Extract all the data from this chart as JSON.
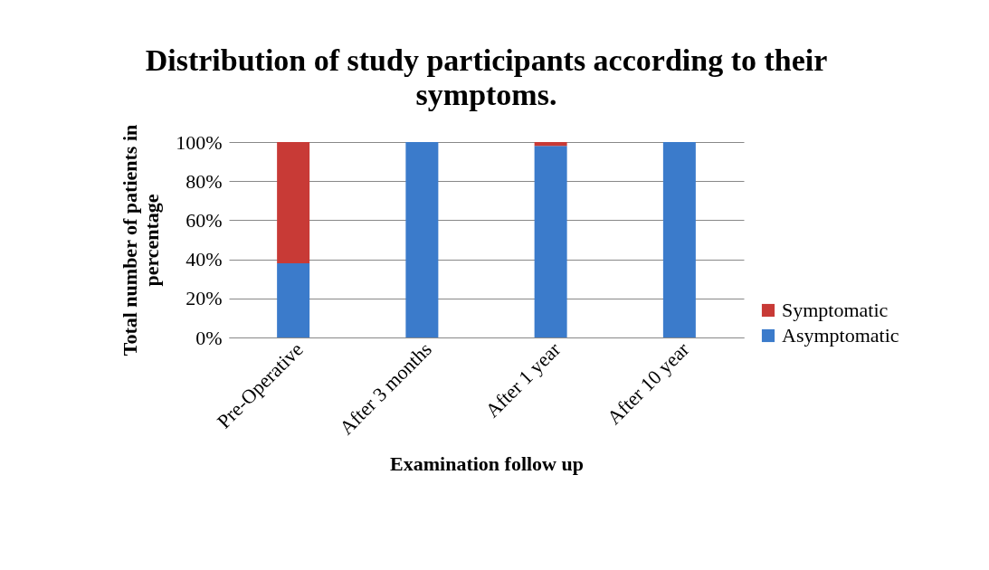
{
  "chart_data": {
    "type": "bar",
    "title": "Distribution of study participants according to their symptoms.",
    "xlabel": "Examination follow up",
    "ylabel": "Total number of patients in percentage",
    "categories": [
      "Pre-Operative",
      "After 3 months",
      "After 1 year",
      "After 10 year"
    ],
    "stacked": true,
    "series": [
      {
        "name": "Asymptomatic",
        "color": "#3b7bcb",
        "values": [
          38,
          100,
          98,
          100
        ]
      },
      {
        "name": "Symptomatic",
        "color": "#c83a36",
        "values": [
          62,
          0,
          2,
          0
        ]
      }
    ],
    "ylim": [
      0,
      100
    ],
    "yticks": [
      {
        "value": 0,
        "label": "0%"
      },
      {
        "value": 20,
        "label": "20%"
      },
      {
        "value": 40,
        "label": "40%"
      },
      {
        "value": 60,
        "label": "60%"
      },
      {
        "value": 80,
        "label": "80%"
      },
      {
        "value": 100,
        "label": "100%"
      }
    ],
    "grid": "y",
    "legend": "right"
  }
}
